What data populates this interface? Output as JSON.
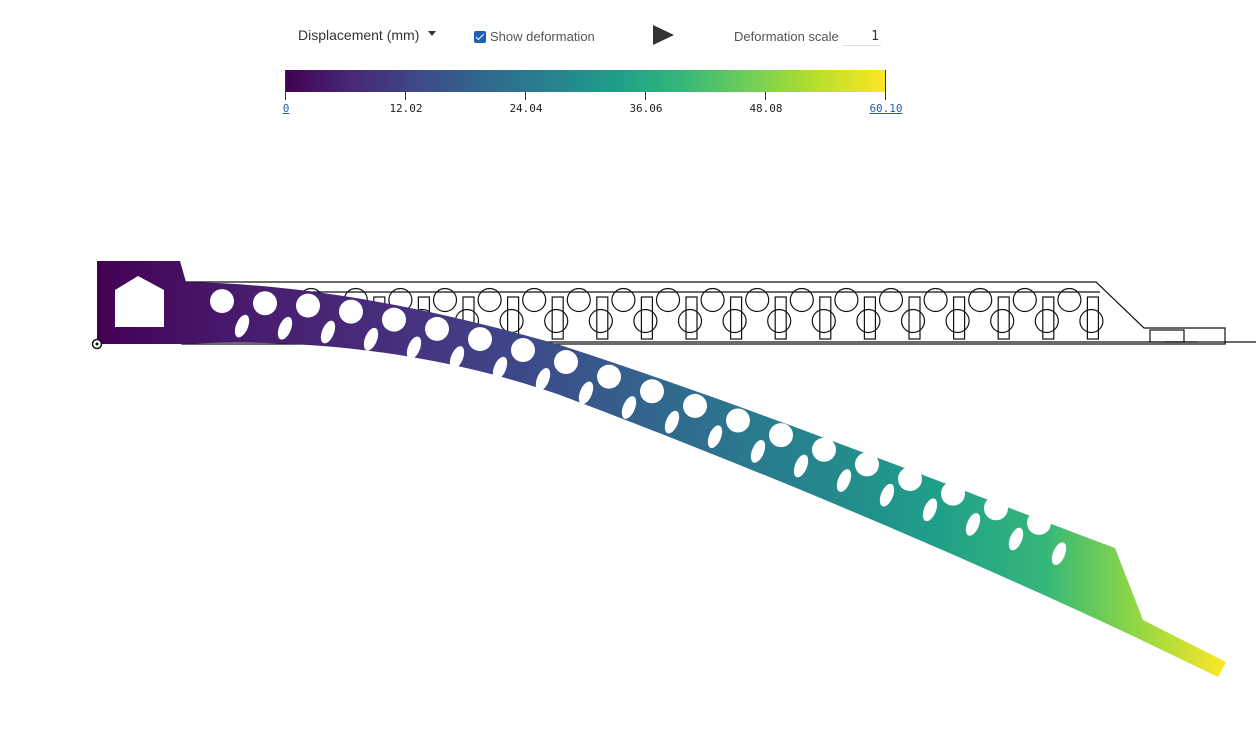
{
  "toolbar": {
    "result_type": "Displacement (mm)",
    "show_deformation_label": "Show deformation",
    "show_deformation_checked": true,
    "play_icon": "play-icon",
    "deformation_scale_label": "Deformation scale",
    "deformation_scale_value": "1"
  },
  "legend": {
    "colormap": [
      "#440154",
      "#482878",
      "#3e4989",
      "#31688e",
      "#26828e",
      "#1f9e89",
      "#35b779",
      "#6ece58",
      "#b5de2b",
      "#fde725"
    ],
    "ticks": [
      "0",
      "12.02",
      "24.04",
      "36.06",
      "48.08",
      "60.10"
    ],
    "min": "0",
    "max": "60.10"
  }
}
